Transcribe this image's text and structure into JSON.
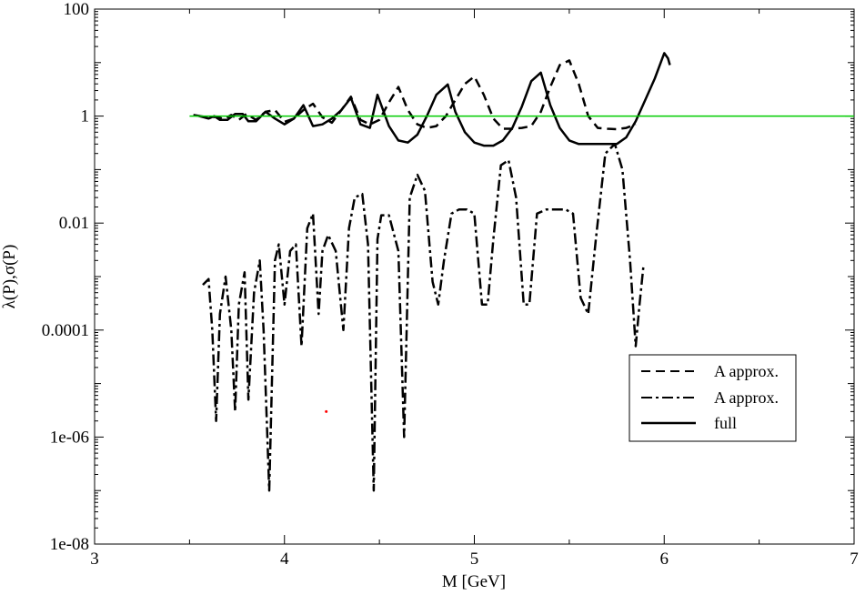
{
  "chart_data": {
    "type": "line",
    "xlabel": "M [GeV]",
    "ylabel": "λ(P),σ(P)",
    "xlim": [
      3,
      7
    ],
    "ylim": [
      1e-08,
      100
    ],
    "yscale": "log",
    "x_ticks": [
      "3",
      "4",
      "5",
      "6",
      "7"
    ],
    "y_ticks": [
      "1e-08",
      "1e-06",
      "0.0001",
      "0.01",
      "1",
      "100"
    ],
    "grid": false,
    "legend": {
      "position": "bottom-right",
      "entries": [
        {
          "label": "A approx.",
          "style": "dashed"
        },
        {
          "label": "A approx.",
          "style": "dash-dot"
        },
        {
          "label": "full",
          "style": "solid"
        }
      ]
    },
    "series": [
      {
        "name": "A approx.",
        "style": "dashed",
        "color": "#000000",
        "x": [
          3.55,
          3.6,
          3.64,
          3.68,
          3.72,
          3.76,
          3.8,
          3.85,
          3.9,
          3.95,
          4.0,
          4.05,
          4.1,
          4.15,
          4.2,
          4.25,
          4.3,
          4.35,
          4.4,
          4.45,
          4.5,
          4.55,
          4.6,
          4.65,
          4.7,
          4.75,
          4.8,
          4.85,
          4.9,
          4.95,
          5.0,
          5.05,
          5.1,
          5.15,
          5.2,
          5.25,
          5.3,
          5.35,
          5.4,
          5.45,
          5.5,
          5.55,
          5.6,
          5.65,
          5.7,
          5.75,
          5.8,
          5.85
        ],
        "y": [
          1.0,
          0.9,
          0.98,
          0.88,
          1.05,
          0.85,
          1.1,
          0.85,
          1.2,
          1.3,
          0.78,
          0.9,
          1.3,
          1.7,
          0.95,
          0.75,
          1.3,
          2.3,
          0.85,
          0.7,
          0.85,
          1.8,
          3.5,
          1.3,
          0.7,
          0.6,
          0.65,
          1.0,
          2.0,
          4.0,
          5.5,
          2.5,
          0.9,
          0.58,
          0.58,
          0.6,
          0.65,
          1.2,
          3.5,
          9.0,
          11.0,
          4.0,
          1.0,
          0.6,
          0.58,
          0.57,
          0.6,
          0.7
        ]
      },
      {
        "name": "A approx.",
        "style": "dash-dot",
        "color": "#000000",
        "x": [
          3.57,
          3.6,
          3.62,
          3.64,
          3.66,
          3.69,
          3.72,
          3.74,
          3.76,
          3.79,
          3.81,
          3.84,
          3.87,
          3.89,
          3.92,
          3.95,
          3.97,
          4.0,
          4.03,
          4.06,
          4.09,
          4.12,
          4.15,
          4.18,
          4.2,
          4.23,
          4.27,
          4.31,
          4.34,
          4.37,
          4.41,
          4.44,
          4.47,
          4.49,
          4.51,
          4.55,
          4.6,
          4.63,
          4.66,
          4.7,
          4.74,
          4.78,
          4.81,
          4.84,
          4.88,
          4.92,
          4.96,
          5.0,
          5.04,
          5.07,
          5.1,
          5.14,
          5.18,
          5.22,
          5.26,
          5.29,
          5.33,
          5.38,
          5.43,
          5.48,
          5.52,
          5.56,
          5.6,
          5.64,
          5.69,
          5.74,
          5.78,
          5.82,
          5.85,
          5.87,
          5.89
        ],
        "y": [
          0.0007,
          0.0009,
          0.0001,
          2e-06,
          0.0002,
          0.001,
          0.0001,
          3e-06,
          0.0003,
          0.0012,
          5e-06,
          0.0005,
          0.002,
          0.0001,
          1e-07,
          0.002,
          0.004,
          0.0003,
          0.003,
          0.004,
          5e-05,
          0.008,
          0.015,
          0.0002,
          0.003,
          0.006,
          0.003,
          0.0001,
          0.008,
          0.03,
          0.035,
          0.004,
          1e-07,
          0.005,
          0.014,
          0.014,
          0.003,
          1e-06,
          0.03,
          0.08,
          0.04,
          0.0008,
          0.0003,
          0.002,
          0.015,
          0.018,
          0.018,
          0.015,
          0.0003,
          0.0003,
          0.005,
          0.12,
          0.15,
          0.03,
          0.0003,
          0.0003,
          0.015,
          0.018,
          0.018,
          0.018,
          0.015,
          0.0004,
          0.0002,
          0.005,
          0.2,
          0.3,
          0.1,
          0.002,
          5e-05,
          0.0003,
          0.0015
        ]
      },
      {
        "name": "full",
        "style": "solid",
        "color": "#000000",
        "x": [
          3.52,
          3.57,
          3.6,
          3.63,
          3.66,
          3.7,
          3.74,
          3.78,
          3.81,
          3.85,
          3.9,
          3.95,
          4.0,
          4.05,
          4.1,
          4.15,
          4.2,
          4.25,
          4.3,
          4.35,
          4.4,
          4.45,
          4.49,
          4.55,
          4.6,
          4.65,
          4.7,
          4.75,
          4.8,
          4.86,
          4.9,
          4.95,
          5.0,
          5.05,
          5.1,
          5.15,
          5.2,
          5.25,
          5.3,
          5.35,
          5.4,
          5.45,
          5.5,
          5.55,
          5.6,
          5.65,
          5.7,
          5.75,
          5.8,
          5.85,
          5.9,
          5.95,
          6.0,
          6.02,
          6.03
        ],
        "y": [
          1.05,
          0.98,
          0.9,
          1.0,
          0.85,
          0.85,
          1.1,
          1.1,
          0.8,
          0.8,
          1.2,
          0.9,
          0.7,
          0.9,
          1.6,
          0.65,
          0.7,
          0.9,
          1.3,
          2.2,
          0.7,
          0.6,
          2.5,
          0.65,
          0.35,
          0.32,
          0.45,
          1.0,
          2.5,
          3.9,
          1.2,
          0.5,
          0.32,
          0.28,
          0.28,
          0.35,
          0.6,
          1.5,
          4.5,
          6.5,
          1.6,
          0.6,
          0.35,
          0.3,
          0.3,
          0.3,
          0.3,
          0.3,
          0.4,
          0.8,
          2.0,
          5.0,
          15.0,
          12.0,
          9.0
        ]
      },
      {
        "name": "",
        "style": "solid",
        "color": "#00cc00",
        "x": [
          3.5,
          7.0
        ],
        "y": [
          1,
          1
        ]
      }
    ],
    "annotations": [
      {
        "x": 4.22,
        "y": 3e-06,
        "color": "#ff0000",
        "type": "dot"
      }
    ]
  }
}
